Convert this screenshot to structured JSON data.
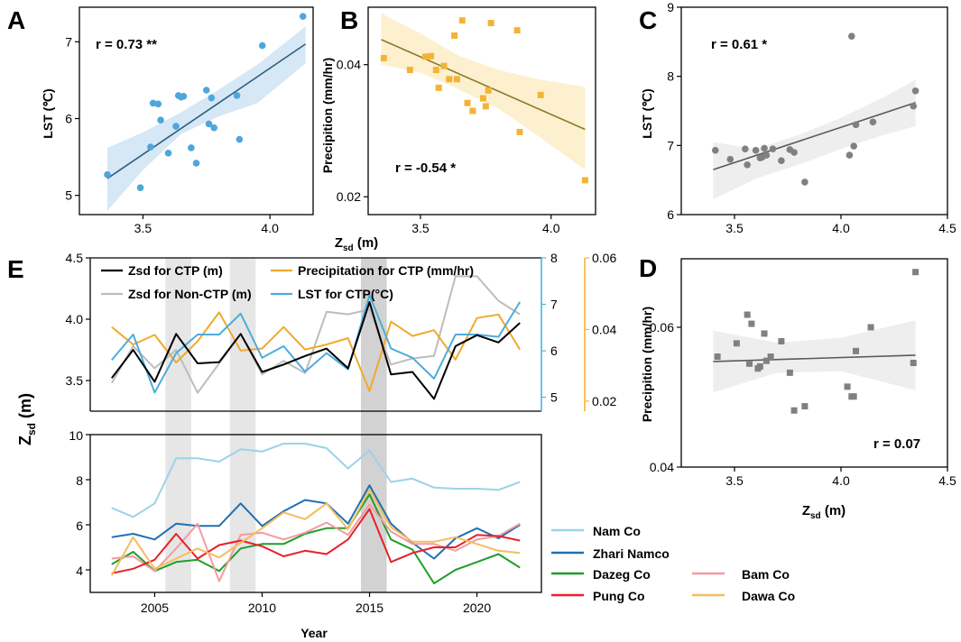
{
  "chart_data": [
    {
      "id": "A",
      "type": "scatter",
      "letter": "A",
      "xlabel": "",
      "ylabel": "LST (℃)",
      "xlim": [
        3.25,
        4.17
      ],
      "ylim": [
        4.75,
        7.45
      ],
      "xticks": [
        3.5,
        4.0
      ],
      "xtick_labels": [
        "3.5",
        "4.0"
      ],
      "yticks": [
        5,
        6,
        7
      ],
      "ytick_labels": [
        "5",
        "6",
        "7"
      ],
      "annotation": "r = 0.73 **",
      "color": "#4DA6DC",
      "band_color": "#D6E7F6",
      "line_color": "#2C5F7E",
      "fit": {
        "x": [
          3.36,
          4.14
        ],
        "y": [
          5.22,
          6.97
        ]
      },
      "band": {
        "x": [
          3.36,
          3.5,
          3.65,
          3.8,
          3.95,
          4.14
        ],
        "upper": [
          5.62,
          5.82,
          6.08,
          6.38,
          6.7,
          7.2
        ],
        "lower": [
          4.8,
          5.33,
          5.8,
          6.03,
          6.2,
          6.72
        ]
      },
      "points": [
        [
          3.36,
          5.27
        ],
        [
          3.49,
          5.1
        ],
        [
          3.53,
          5.63
        ],
        [
          3.54,
          6.2
        ],
        [
          3.56,
          6.19
        ],
        [
          3.57,
          5.98
        ],
        [
          3.6,
          5.55
        ],
        [
          3.63,
          5.9
        ],
        [
          3.64,
          6.3
        ],
        [
          3.65,
          6.28
        ],
        [
          3.66,
          6.29
        ],
        [
          3.69,
          5.62
        ],
        [
          3.71,
          5.42
        ],
        [
          3.75,
          6.37
        ],
        [
          3.76,
          5.93
        ],
        [
          3.77,
          6.27
        ],
        [
          3.78,
          5.88
        ],
        [
          3.87,
          6.3
        ],
        [
          3.88,
          5.73
        ],
        [
          3.97,
          6.95
        ],
        [
          4.13,
          7.33
        ]
      ]
    },
    {
      "id": "B",
      "type": "scatter",
      "letter": "B",
      "xlabel": "Zsd (m)",
      "ylabel": "Precipition (mm/hr)",
      "xlim": [
        3.3,
        4.17
      ],
      "ylim": [
        0.0173,
        0.0487
      ],
      "xticks": [
        3.5,
        4.0
      ],
      "xtick_labels": [
        "3.5",
        "4.0"
      ],
      "yticks": [
        0.02,
        0.04
      ],
      "ytick_labels": [
        "0.02",
        "0.04"
      ],
      "annotation": "r = -0.54 *",
      "color": "#F5B335",
      "band_color": "#FDF0CF",
      "line_color": "#8A7A2A",
      "fit": {
        "x": [
          3.35,
          4.13
        ],
        "y": [
          0.0438,
          0.0302
        ]
      },
      "band": {
        "x": [
          3.35,
          3.5,
          3.65,
          3.8,
          3.95,
          4.13
        ],
        "upper": [
          0.0478,
          0.0447,
          0.0413,
          0.0392,
          0.0378,
          0.0366
        ],
        "lower": [
          0.04,
          0.0388,
          0.0362,
          0.0333,
          0.0292,
          0.0241
        ]
      },
      "points": [
        [
          3.36,
          0.041
        ],
        [
          3.46,
          0.0392
        ],
        [
          3.52,
          0.0412
        ],
        [
          3.54,
          0.0413
        ],
        [
          3.56,
          0.0392
        ],
        [
          3.57,
          0.0365
        ],
        [
          3.59,
          0.0398
        ],
        [
          3.61,
          0.0378
        ],
        [
          3.63,
          0.0444
        ],
        [
          3.64,
          0.0378
        ],
        [
          3.66,
          0.0467
        ],
        [
          3.68,
          0.0342
        ],
        [
          3.7,
          0.033
        ],
        [
          3.74,
          0.0349
        ],
        [
          3.75,
          0.0337
        ],
        [
          3.76,
          0.0361
        ],
        [
          3.77,
          0.0463
        ],
        [
          3.87,
          0.0452
        ],
        [
          3.88,
          0.0298
        ],
        [
          3.96,
          0.0354
        ],
        [
          4.13,
          0.0225
        ]
      ]
    },
    {
      "id": "C",
      "type": "scatter",
      "letter": "C",
      "xlabel": "",
      "ylabel": "LST (℃)",
      "xlim": [
        3.25,
        4.5
      ],
      "ylim": [
        6,
        9
      ],
      "xticks": [
        3.5,
        4.0,
        4.5
      ],
      "xtick_labels": [
        "3.5",
        "4.0",
        "4.5"
      ],
      "yticks": [
        6,
        7,
        8,
        9
      ],
      "ytick_labels": [
        "6",
        "7",
        "8",
        "9"
      ],
      "annotation": "r = 0.61 *",
      "color": "#808080",
      "band_color": "#EEEEEE",
      "line_color": "#5A5A5A",
      "fit": {
        "x": [
          3.4,
          4.35
        ],
        "y": [
          6.65,
          7.62
        ]
      },
      "band": {
        "x": [
          3.4,
          3.6,
          3.8,
          4.0,
          4.2,
          4.35
        ],
        "upper": [
          7.05,
          6.95,
          7.15,
          7.4,
          7.7,
          7.95
        ],
        "lower": [
          6.22,
          6.52,
          6.72,
          6.95,
          7.15,
          7.28
        ]
      },
      "points": [
        [
          3.41,
          6.93
        ],
        [
          3.48,
          6.8
        ],
        [
          3.55,
          6.95
        ],
        [
          3.56,
          6.72
        ],
        [
          3.6,
          6.93
        ],
        [
          3.62,
          6.82
        ],
        [
          3.63,
          6.83
        ],
        [
          3.64,
          6.96
        ],
        [
          3.65,
          6.86
        ],
        [
          3.68,
          6.95
        ],
        [
          3.72,
          6.78
        ],
        [
          3.76,
          6.94
        ],
        [
          3.78,
          6.9
        ],
        [
          3.83,
          6.47
        ],
        [
          4.04,
          6.86
        ],
        [
          4.05,
          8.58
        ],
        [
          4.06,
          6.99
        ],
        [
          4.07,
          7.3
        ],
        [
          4.15,
          7.34
        ],
        [
          4.34,
          7.57
        ],
        [
          4.35,
          7.79
        ]
      ]
    },
    {
      "id": "D",
      "type": "scatter",
      "letter": "D",
      "xlabel": "Zsd (m)",
      "ylabel": "Precipition (mm/hr)",
      "xlim": [
        3.25,
        4.5
      ],
      "ylim": [
        0.04,
        0.0698
      ],
      "xticks": [
        3.5,
        4.0,
        4.5
      ],
      "xtick_labels": [
        "3.5",
        "4.0",
        "4.5"
      ],
      "yticks": [
        0.04,
        0.06
      ],
      "ytick_labels": [
        "0.04",
        "0.06"
      ],
      "annotation": "r = 0.07",
      "color": "#808080",
      "band_color": "#EEEEEE",
      "line_color": "#5A5A5A",
      "fit": {
        "x": [
          3.4,
          4.35
        ],
        "y": [
          0.0551,
          0.056
        ]
      },
      "band": {
        "x": [
          3.4,
          3.7,
          4.0,
          4.35
        ],
        "upper": [
          0.0595,
          0.0578,
          0.0585,
          0.061
        ],
        "lower": [
          0.0507,
          0.0535,
          0.0537,
          0.051
        ]
      },
      "points": [
        [
          3.42,
          0.0558
        ],
        [
          3.51,
          0.0577
        ],
        [
          3.56,
          0.0618
        ],
        [
          3.57,
          0.0548
        ],
        [
          3.58,
          0.0605
        ],
        [
          3.61,
          0.0541
        ],
        [
          3.62,
          0.0544
        ],
        [
          3.64,
          0.0591
        ],
        [
          3.65,
          0.0552
        ],
        [
          3.67,
          0.0558
        ],
        [
          3.72,
          0.058
        ],
        [
          3.76,
          0.0535
        ],
        [
          3.78,
          0.0481
        ],
        [
          3.83,
          0.0487
        ],
        [
          4.03,
          0.0515
        ],
        [
          4.05,
          0.0501
        ],
        [
          4.06,
          0.0501
        ],
        [
          4.07,
          0.0566
        ],
        [
          4.14,
          0.06
        ],
        [
          4.34,
          0.0549
        ],
        [
          4.35,
          0.0679
        ]
      ]
    },
    {
      "id": "E_top",
      "type": "line",
      "letter": "E",
      "xlim": [
        2002,
        2023
      ],
      "left_axis": {
        "label": "Zsd (m)",
        "lim": [
          3.25,
          4.5
        ],
        "ticks": [
          3.5,
          4.0,
          4.5
        ],
        "tick_labels": [
          "3.5",
          "4.0",
          "4.5"
        ]
      },
      "right_axis_1": {
        "lim": [
          4.7,
          8
        ],
        "ticks": [
          5,
          6,
          7,
          8
        ],
        "tick_labels": [
          "5",
          "6",
          "7",
          "8"
        ],
        "color": "#4DB3E6"
      },
      "right_axis_2": {
        "lim": [
          0.0172,
          0.06
        ],
        "ticks": [
          0.02,
          0.04,
          0.06
        ],
        "tick_labels": [
          "0.02",
          "0.04",
          "0.06"
        ],
        "color": "#F5B335"
      },
      "shaded_bands": [
        [
          2005.5,
          2006.7
        ],
        [
          2008.5,
          2009.7
        ],
        [
          2014.6,
          2015.8
        ]
      ],
      "x": [
        2003,
        2004,
        2005,
        2006,
        2007,
        2008,
        2009,
        2010,
        2011,
        2012,
        2013,
        2014,
        2015,
        2016,
        2017,
        2018,
        2019,
        2020,
        2021,
        2022
      ],
      "series": [
        {
          "name": "Zsd for CTP (m)",
          "axis": "left",
          "color": "#000000",
          "values": [
            3.52,
            3.75,
            3.49,
            3.88,
            3.64,
            3.65,
            3.88,
            3.57,
            3.63,
            3.7,
            3.76,
            3.6,
            4.14,
            3.55,
            3.57,
            3.35,
            3.78,
            3.87,
            3.81,
            3.97
          ]
        },
        {
          "name": "Zsd for Non-CTP (m)",
          "axis": "left",
          "color": "#BDBDBD",
          "values": [
            3.48,
            3.78,
            3.6,
            3.75,
            3.4,
            3.64,
            3.88,
            3.55,
            3.66,
            3.56,
            4.06,
            4.04,
            4.08,
            3.63,
            3.68,
            3.7,
            4.35,
            4.35,
            4.15,
            4.04
          ]
        },
        {
          "name": "LST for CTP(°C)",
          "axis": "right1",
          "color": "#4DACDC",
          "values": [
            5.8,
            6.35,
            5.1,
            5.95,
            6.35,
            6.35,
            6.8,
            5.85,
            6.1,
            5.55,
            5.95,
            5.6,
            7.2,
            6.05,
            5.85,
            5.4,
            6.35,
            6.35,
            6.3,
            7.05
          ]
        },
        {
          "name": "Precipitation for CTP (mm/hr)",
          "axis": "right2",
          "color": "#F0A92C",
          "values": [
            0.0407,
            0.0358,
            0.0385,
            0.0308,
            0.0367,
            0.0448,
            0.0341,
            0.0347,
            0.0407,
            0.0344,
            0.0358,
            0.0376,
            0.0228,
            0.0422,
            0.0382,
            0.0398,
            0.0316,
            0.0432,
            0.0442,
            0.0344
          ]
        }
      ],
      "legend": [
        "Zsd for CTP (m)",
        "Precipitation for CTP (mm/hr)",
        "Zsd for Non-CTP (m)",
        "LST for CTP(°C)"
      ]
    },
    {
      "id": "E_bottom",
      "type": "line",
      "xlabel": "Year",
      "xlim": [
        2002,
        2023
      ],
      "ylim": [
        3,
        10
      ],
      "xticks": [
        2005,
        2010,
        2015,
        2020
      ],
      "xtick_labels": [
        "2005",
        "2010",
        "2015",
        "2020"
      ],
      "yticks": [
        4,
        6,
        8,
        10
      ],
      "ytick_labels": [
        "4",
        "6",
        "8",
        "10"
      ],
      "shared_ylabel": "Zsd (m)",
      "x": [
        2003,
        2004,
        2005,
        2006,
        2007,
        2008,
        2009,
        2010,
        2011,
        2012,
        2013,
        2014,
        2015,
        2016,
        2017,
        2018,
        2019,
        2020,
        2021,
        2022
      ],
      "series": [
        {
          "name": "Nam Co",
          "color": "#9BD3E8",
          "values": [
            6.75,
            6.35,
            6.95,
            8.95,
            8.95,
            8.8,
            9.35,
            9.25,
            9.6,
            9.6,
            9.4,
            8.5,
            9.3,
            7.9,
            8.05,
            7.65,
            7.6,
            7.6,
            7.55,
            7.9
          ]
        },
        {
          "name": "Zhari Namco",
          "color": "#1F6FB4",
          "values": [
            5.45,
            5.6,
            5.35,
            6.05,
            5.95,
            5.95,
            6.95,
            5.95,
            6.6,
            7.1,
            6.95,
            6.05,
            7.75,
            6.05,
            5.2,
            4.5,
            5.4,
            5.85,
            5.4,
            6.0
          ]
        },
        {
          "name": "Dazeg Co",
          "color": "#1F9E2A",
          "values": [
            4.25,
            4.8,
            3.95,
            4.35,
            4.45,
            3.95,
            4.95,
            5.15,
            5.15,
            5.6,
            5.85,
            5.85,
            7.35,
            5.35,
            4.9,
            3.4,
            4.0,
            4.35,
            4.7,
            4.1
          ]
        },
        {
          "name": "Bam Co",
          "color": "#F49BA0",
          "values": [
            4.5,
            4.6,
            3.95,
            4.95,
            6.05,
            3.5,
            5.55,
            5.65,
            5.35,
            5.65,
            6.1,
            5.55,
            6.9,
            5.7,
            5.15,
            5.15,
            4.85,
            5.35,
            5.5,
            6.05
          ]
        },
        {
          "name": "Pung Co",
          "color": "#E8202A",
          "values": [
            3.85,
            4.05,
            4.45,
            5.6,
            4.5,
            5.1,
            5.3,
            5.05,
            4.6,
            4.85,
            4.7,
            5.35,
            6.7,
            4.35,
            4.75,
            5.0,
            5.0,
            5.55,
            5.5,
            5.3
          ]
        },
        {
          "name": "Dawa Co",
          "color": "#F6BC5C",
          "values": [
            3.75,
            5.45,
            4.05,
            4.5,
            4.95,
            4.55,
            5.2,
            5.85,
            6.55,
            6.25,
            6.95,
            5.8,
            7.55,
            5.9,
            5.25,
            5.25,
            5.45,
            5.15,
            4.85,
            4.75
          ]
        }
      ],
      "legend": [
        "Nam Co",
        "Zhari Namco",
        "Dazeg Co",
        "Bam Co",
        "Pung Co",
        "Dawa Co"
      ]
    }
  ]
}
